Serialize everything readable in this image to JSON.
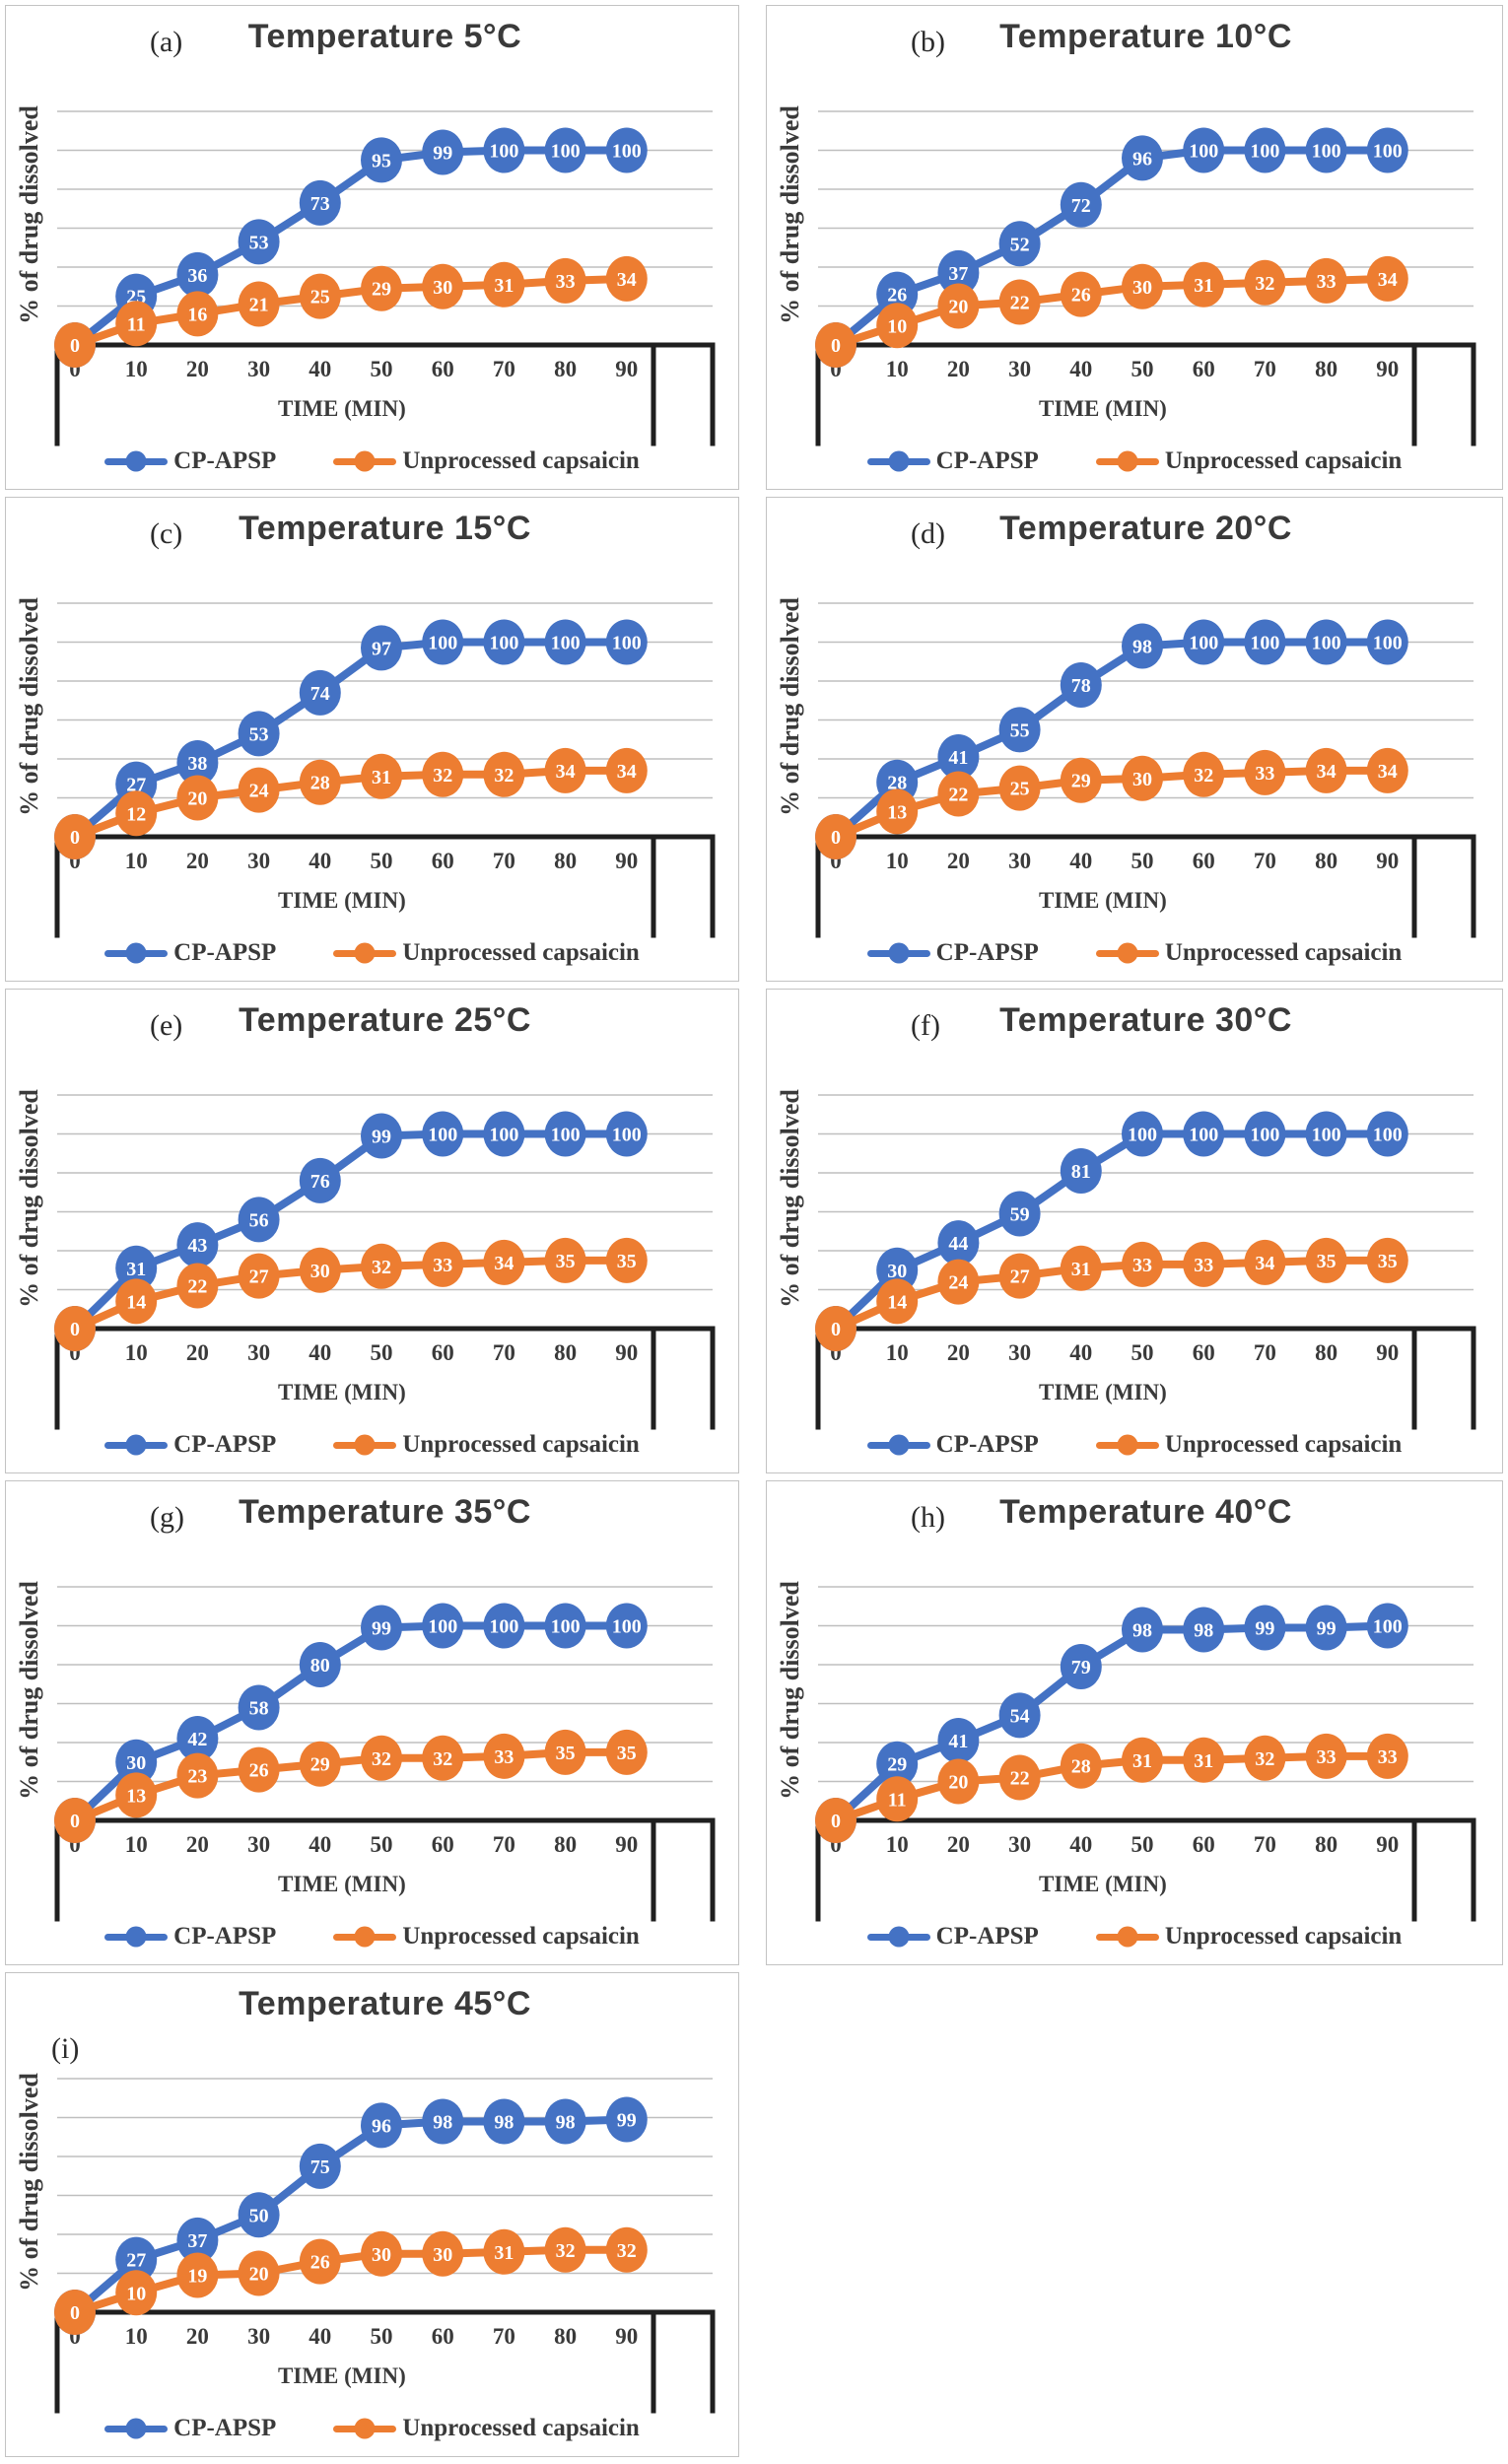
{
  "figure": {
    "grid_color": "#bfbfbf",
    "axis_color": "#1f1f1f",
    "text_color": "#3a3a3a",
    "label_text_color": "#ffffff",
    "series_colors": {
      "cp_apsp": "#4472C4",
      "unprocessed_capsaicin": "#ED7D31"
    }
  },
  "chart_data": [
    {
      "type": "line",
      "panel_label": "(a)",
      "title": "Temperature 5°C",
      "x": [
        0,
        10,
        20,
        30,
        40,
        50,
        60,
        70,
        80,
        90
      ],
      "xlabel": "TIME (MIN)",
      "ylabel": "% of drug dissolved",
      "ylim": [
        0,
        120
      ],
      "grid": true,
      "legend_position": "bottom",
      "series": [
        {
          "name": "CP-APSP",
          "color": "#4472C4",
          "values": [
            0,
            25,
            36,
            53,
            73,
            95,
            99,
            100,
            100,
            100
          ]
        },
        {
          "name": "Unprocessed capsaicin",
          "color": "#ED7D31",
          "values": [
            0,
            11,
            16,
            21,
            25,
            29,
            30,
            31,
            33,
            34
          ]
        }
      ]
    },
    {
      "type": "line",
      "panel_label": "(b)",
      "title": "Temperature 10°C",
      "x": [
        0,
        10,
        20,
        30,
        40,
        50,
        60,
        70,
        80,
        90
      ],
      "xlabel": "TIME (MIN)",
      "ylabel": "% of drug dissolved",
      "ylim": [
        0,
        120
      ],
      "grid": true,
      "legend_position": "bottom",
      "series": [
        {
          "name": "CP-APSP",
          "color": "#4472C4",
          "values": [
            0,
            26,
            37,
            52,
            72,
            96,
            100,
            100,
            100,
            100
          ]
        },
        {
          "name": "Unprocessed capsaicin",
          "color": "#ED7D31",
          "values": [
            0,
            10,
            20,
            22,
            26,
            30,
            31,
            32,
            33,
            34
          ]
        }
      ]
    },
    {
      "type": "line",
      "panel_label": "(c)",
      "title": "Temperature 15°C",
      "x": [
        0,
        10,
        20,
        30,
        40,
        50,
        60,
        70,
        80,
        90
      ],
      "xlabel": "TIME (MIN)",
      "ylabel": "% of drug dissolved",
      "ylim": [
        0,
        120
      ],
      "grid": true,
      "legend_position": "bottom",
      "series": [
        {
          "name": "CP-APSP",
          "color": "#4472C4",
          "values": [
            0,
            27,
            38,
            53,
            74,
            97,
            100,
            100,
            100,
            100
          ]
        },
        {
          "name": "Unprocessed capsaicin",
          "color": "#ED7D31",
          "values": [
            0,
            12,
            20,
            24,
            28,
            31,
            32,
            32,
            34,
            34
          ]
        }
      ]
    },
    {
      "type": "line",
      "panel_label": "(d)",
      "title": "Temperature 20°C",
      "x": [
        0,
        10,
        20,
        30,
        40,
        50,
        60,
        70,
        80,
        90
      ],
      "xlabel": "TIME (MIN)",
      "ylabel": "% of drug dissolved",
      "ylim": [
        0,
        120
      ],
      "grid": true,
      "legend_position": "bottom",
      "series": [
        {
          "name": "CP-APSP",
          "color": "#4472C4",
          "values": [
            0,
            28,
            41,
            55,
            78,
            98,
            100,
            100,
            100,
            100
          ]
        },
        {
          "name": "Unprocessed capsaicin",
          "color": "#ED7D31",
          "values": [
            0,
            13,
            22,
            25,
            29,
            30,
            32,
            33,
            34,
            34
          ]
        }
      ]
    },
    {
      "type": "line",
      "panel_label": "(e)",
      "title": "Temperature 25°C",
      "x": [
        0,
        10,
        20,
        30,
        40,
        50,
        60,
        70,
        80,
        90
      ],
      "xlabel": "TIME (MIN)",
      "ylabel": "% of drug dissolved",
      "ylim": [
        0,
        120
      ],
      "grid": true,
      "legend_position": "bottom",
      "series": [
        {
          "name": "CP-APSP",
          "color": "#4472C4",
          "values": [
            0,
            31,
            43,
            56,
            76,
            99,
            100,
            100,
            100,
            100
          ]
        },
        {
          "name": "Unprocessed capsaicin",
          "color": "#ED7D31",
          "values": [
            0,
            14,
            22,
            27,
            30,
            32,
            33,
            34,
            35,
            35
          ]
        }
      ]
    },
    {
      "type": "line",
      "panel_label": "(f)",
      "title": "Temperature 30°C",
      "x": [
        0,
        10,
        20,
        30,
        40,
        50,
        60,
        70,
        80,
        90
      ],
      "xlabel": "TIME (MIN)",
      "ylabel": "% of drug dissolved",
      "ylim": [
        0,
        120
      ],
      "grid": true,
      "legend_position": "bottom",
      "series": [
        {
          "name": "CP-APSP",
          "color": "#4472C4",
          "values": [
            0,
            30,
            44,
            59,
            81,
            100,
            100,
            100,
            100,
            100
          ]
        },
        {
          "name": "Unprocessed capsaicin",
          "color": "#ED7D31",
          "values": [
            0,
            14,
            24,
            27,
            31,
            33,
            33,
            34,
            35,
            35
          ]
        }
      ]
    },
    {
      "type": "line",
      "panel_label": "(g)",
      "title": "Temperature 35°C",
      "x": [
        0,
        10,
        20,
        30,
        40,
        50,
        60,
        70,
        80,
        90
      ],
      "xlabel": "TIME (MIN)",
      "ylabel": "% of drug dissolved",
      "ylim": [
        0,
        120
      ],
      "grid": true,
      "legend_position": "bottom",
      "series": [
        {
          "name": "CP-APSP",
          "color": "#4472C4",
          "values": [
            0,
            30,
            42,
            58,
            80,
            99,
            100,
            100,
            100,
            100
          ]
        },
        {
          "name": "Unprocessed capsaicin",
          "color": "#ED7D31",
          "values": [
            0,
            13,
            23,
            26,
            29,
            32,
            32,
            33,
            35,
            35
          ]
        }
      ]
    },
    {
      "type": "line",
      "panel_label": "(h)",
      "title": "Temperature 40°C",
      "x": [
        0,
        10,
        20,
        30,
        40,
        50,
        60,
        70,
        80,
        90
      ],
      "xlabel": "TIME (MIN)",
      "ylabel": "% of drug dissolved",
      "ylim": [
        0,
        120
      ],
      "grid": true,
      "legend_position": "bottom",
      "series": [
        {
          "name": "CP-APSP",
          "color": "#4472C4",
          "values": [
            0,
            29,
            41,
            54,
            79,
            98,
            98,
            99,
            99,
            100
          ]
        },
        {
          "name": "Unprocessed capsaicin",
          "color": "#ED7D31",
          "values": [
            0,
            11,
            20,
            22,
            28,
            31,
            31,
            32,
            33,
            33
          ]
        }
      ]
    },
    {
      "type": "line",
      "panel_label": "(i)",
      "title": "Temperature 45°C",
      "x": [
        0,
        10,
        20,
        30,
        40,
        50,
        60,
        70,
        80,
        90
      ],
      "xlabel": "TIME (MIN)",
      "ylabel": "% of drug dissolved",
      "ylim": [
        0,
        120
      ],
      "grid": true,
      "legend_position": "bottom",
      "series": [
        {
          "name": "CP-APSP",
          "color": "#4472C4",
          "values": [
            0,
            27,
            37,
            50,
            75,
            96,
            98,
            98,
            98,
            99
          ]
        },
        {
          "name": "Unprocessed capsaicin",
          "color": "#ED7D31",
          "values": [
            0,
            10,
            19,
            20,
            26,
            30,
            30,
            31,
            32,
            32
          ]
        }
      ]
    }
  ]
}
